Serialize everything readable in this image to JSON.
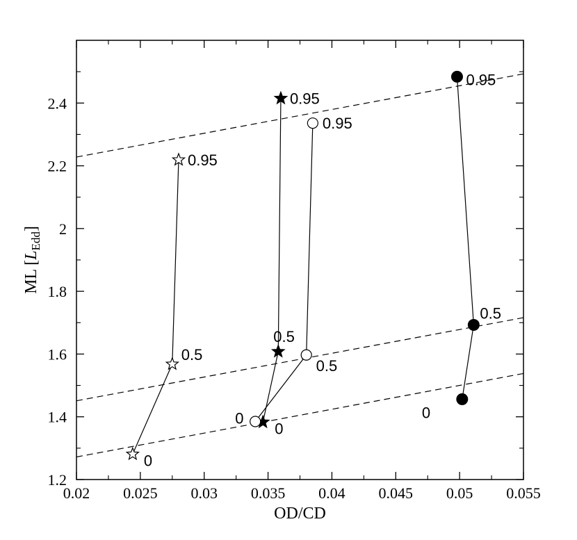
{
  "chart_data": {
    "type": "scatter",
    "xlabel": "OD/CD",
    "ylabel": {
      "prefix": "ML [",
      "symbol": "L",
      "subscript": "Edd",
      "suffix": "]"
    },
    "xlim": [
      0.02,
      0.055
    ],
    "ylim": [
      1.2,
      2.6
    ],
    "xticks": [
      0.02,
      0.025,
      0.03,
      0.035,
      0.04,
      0.045,
      0.05,
      0.055
    ],
    "xtick_labels": [
      "0.02",
      "0.025",
      "0.03",
      "0.035",
      "0.04",
      "0.045",
      "0.05",
      "0.055"
    ],
    "yticks": [
      1.2,
      1.4,
      1.6,
      1.8,
      2.0,
      2.2,
      2.4
    ],
    "ytick_labels": [
      "1.2",
      "1.4",
      "1.6",
      "1.8",
      "2",
      "2.2",
      "2.4"
    ],
    "grid": false,
    "series": [
      {
        "marker": "open-star",
        "points": [
          {
            "x": 0.0244,
            "y": 1.281,
            "label": "0"
          },
          {
            "x": 0.0275,
            "y": 1.568,
            "label": "0.5"
          },
          {
            "x": 0.028,
            "y": 2.219,
            "label": "0.95"
          }
        ]
      },
      {
        "marker": "filled-star",
        "points": [
          {
            "x": 0.0346,
            "y": 1.383,
            "label": "0"
          },
          {
            "x": 0.0358,
            "y": 1.608,
            "label": "0.5"
          },
          {
            "x": 0.036,
            "y": 2.415,
            "label": "0.95"
          }
        ]
      },
      {
        "marker": "open-circle",
        "points": [
          {
            "x": 0.034,
            "y": 1.385,
            "label": "0"
          },
          {
            "x": 0.038,
            "y": 1.597,
            "label": "0.5"
          },
          {
            "x": 0.0385,
            "y": 2.336,
            "label": "0.95"
          }
        ]
      },
      {
        "marker": "filled-circle",
        "points": [
          {
            "x": 0.0502,
            "y": 1.456,
            "label": "0"
          },
          {
            "x": 0.0511,
            "y": 1.693,
            "label": "0.5"
          },
          {
            "x": 0.0498,
            "y": 2.484,
            "label": "0.95"
          }
        ]
      }
    ],
    "reference_lines": [
      {
        "style": "dashed",
        "x": [
          0.02,
          0.055
        ],
        "y": [
          2.228,
          2.493
        ]
      },
      {
        "style": "dashed",
        "x": [
          0.02,
          0.055
        ],
        "y": [
          1.451,
          1.716
        ]
      },
      {
        "style": "dashed",
        "x": [
          0.02,
          0.055
        ],
        "y": [
          1.272,
          1.538
        ]
      }
    ]
  }
}
